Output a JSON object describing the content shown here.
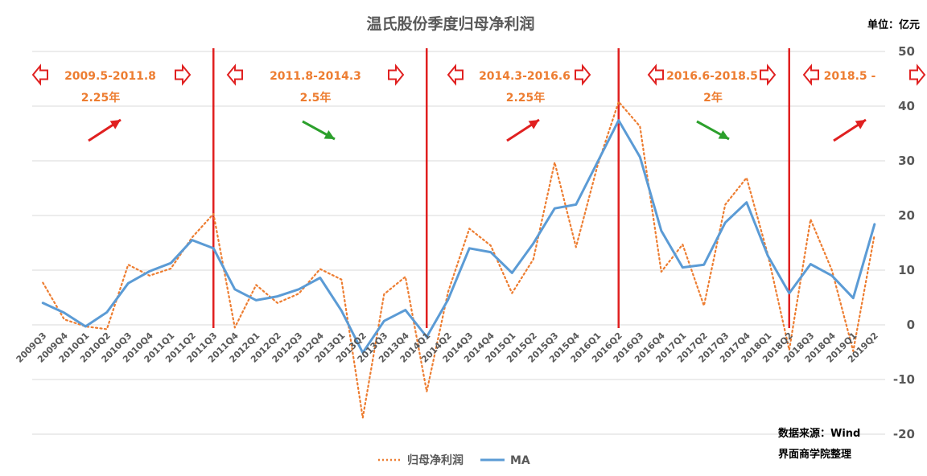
{
  "chart_data": {
    "type": "line",
    "title": "温氏股份季度归母净利润",
    "unit": "单位：亿元",
    "source_line1": "数据来源：Wind",
    "source_line2": "界面商学院整理",
    "ylim": [
      -20,
      50
    ],
    "yticks": [
      -20,
      -10,
      0,
      10,
      20,
      30,
      40,
      50
    ],
    "grid": true,
    "legend_position": "bottom",
    "categories": [
      "2009Q3",
      "2009Q4",
      "2010Q1",
      "2010Q2",
      "2010Q3",
      "2010Q4",
      "2011Q1",
      "2011Q2",
      "2011Q3",
      "2011Q4",
      "2012Q1",
      "2012Q2",
      "2012Q3",
      "2012Q4",
      "2013Q1",
      "2013Q2",
      "2013Q3",
      "2013Q4",
      "2014Q1",
      "2014Q2",
      "2014Q3",
      "2014Q4",
      "2015Q1",
      "2015Q2",
      "2015Q3",
      "2015Q4",
      "2016Q1",
      "2016Q2",
      "2016Q3",
      "2016Q4",
      "2017Q1",
      "2017Q2",
      "2017Q3",
      "2017Q4",
      "2018Q1",
      "2018Q2",
      "2018Q3",
      "2018Q4",
      "2019Q1",
      "2019Q2"
    ],
    "series": [
      {
        "name": "归母净利润",
        "color": "#ed7d31",
        "style": "dotted",
        "values": [
          7.7,
          1.0,
          -0.3,
          -0.8,
          11.0,
          9.0,
          10.3,
          16.0,
          20.3,
          -0.5,
          7.3,
          4.0,
          5.7,
          10.2,
          8.3,
          -17.0,
          5.6,
          8.8,
          -12.2,
          6.0,
          17.6,
          14.5,
          5.8,
          12.0,
          29.7,
          14.2,
          29.0,
          40.8,
          36.3,
          9.7,
          14.7,
          3.5,
          22.0,
          26.9,
          12.8,
          -4.6,
          19.3,
          10.0,
          -4.8,
          16.5
        ]
      },
      {
        "name": "MA",
        "color": "#5b9bd5",
        "style": "solid",
        "values": [
          4.0,
          2.2,
          -0.3,
          2.3,
          7.6,
          9.8,
          11.3,
          15.5,
          14.0,
          6.5,
          4.5,
          5.2,
          6.5,
          8.6,
          2.6,
          -5.1,
          0.7,
          2.7,
          -2.2,
          4.6,
          14.0,
          13.3,
          9.5,
          14.9,
          21.3,
          22.0,
          29.7,
          37.4,
          30.7,
          17.2,
          10.5,
          11.0,
          18.7,
          22.4,
          12.6,
          5.8,
          11.1,
          9.0,
          4.9,
          18.4
        ]
      }
    ],
    "boundaries": [
      "2011Q3",
      "2014Q1",
      "2016Q2",
      "2018Q2"
    ],
    "periods": [
      {
        "range": "2009.5-2011.8",
        "duration": "2.25年",
        "trend": "up"
      },
      {
        "range": "2011.8-2014.3",
        "duration": "2.5年",
        "trend": "down"
      },
      {
        "range": "2014.3-2016.6",
        "duration": "2.25年",
        "trend": "up"
      },
      {
        "range": "2016.6-2018.5",
        "duration": "2年",
        "trend": "down"
      },
      {
        "range": "2018.5 -",
        "duration": "",
        "trend": "up"
      }
    ],
    "colors": {
      "boundary": "#e02020",
      "up_arrow": "#e02020",
      "down_arrow": "#2ca02c",
      "grid": "#d9d9d9"
    }
  }
}
